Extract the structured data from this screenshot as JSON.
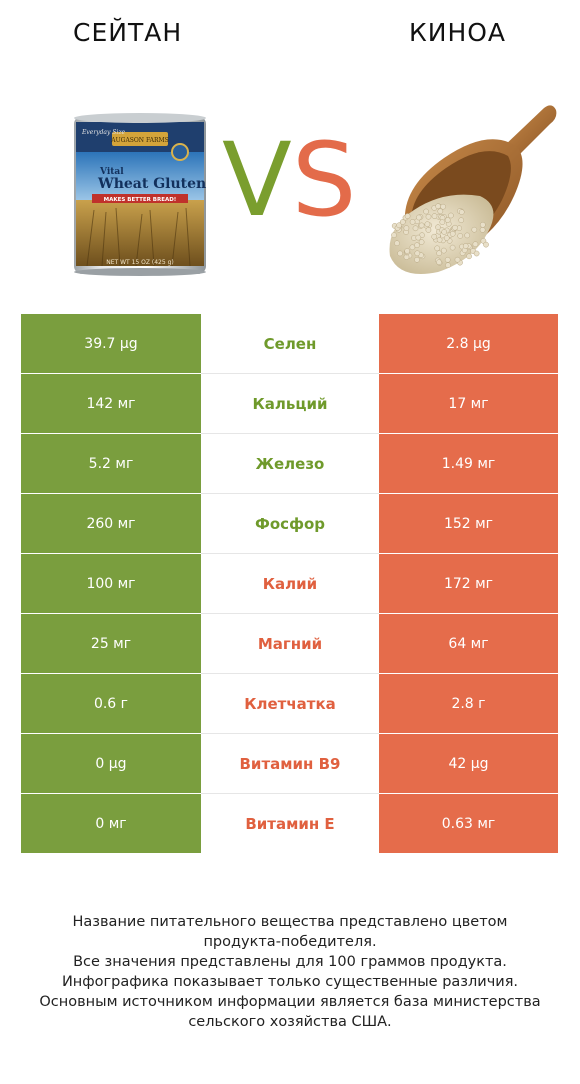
{
  "header": {
    "left_title": "СЕЙТАН",
    "right_title": "КИНОА",
    "vs_v": "V",
    "vs_s": "S"
  },
  "colors": {
    "left_product": "#7a9e3e",
    "right_product": "#e56c4b"
  },
  "images": {
    "left": {
      "icon": "wheat-gluten-can",
      "label_brand": "AUGASON FARMS",
      "label_line1": "Vital",
      "label_line2": "Wheat Gluten",
      "label_line3": "MAKES BETTER BREAD!",
      "label_corner": "Everyday Size",
      "label_bottom": "NET WT 15 OZ (425 g)"
    },
    "right": {
      "icon": "quinoa-scoop"
    }
  },
  "chart_data": {
    "type": "table",
    "columns": [
      "СЕЙТАН",
      "",
      "КИНОА"
    ],
    "rows": [
      {
        "nutrient": "Селен",
        "left": "39.7 µg",
        "right": "2.8 µg",
        "winner": "left"
      },
      {
        "nutrient": "Кальций",
        "left": "142 мг",
        "right": "17 мг",
        "winner": "left"
      },
      {
        "nutrient": "Железо",
        "left": "5.2 мг",
        "right": "1.49 мг",
        "winner": "left"
      },
      {
        "nutrient": "Фосфор",
        "left": "260 мг",
        "right": "152 мг",
        "winner": "left"
      },
      {
        "nutrient": "Калий",
        "left": "100 мг",
        "right": "172 мг",
        "winner": "right"
      },
      {
        "nutrient": "Магний",
        "left": "25 мг",
        "right": "64 мг",
        "winner": "right"
      },
      {
        "nutrient": "Клетчатка",
        "left": "0.6 г",
        "right": "2.8 г",
        "winner": "right"
      },
      {
        "nutrient": "Витамин B9",
        "left": "0 µg",
        "right": "42 µg",
        "winner": "right"
      },
      {
        "nutrient": "Витамин E",
        "left": "0 мг",
        "right": "0.63 мг",
        "winner": "right"
      }
    ]
  },
  "footer": {
    "lines": [
      "Название питательного вещества представлено цветом",
      "продукта-победителя.",
      "Все значения представлены для 100 граммов продукта.",
      "Инфографика показывает только существенные различия.",
      "Основным источником информации является база министерства",
      "сельского хозяйства США."
    ]
  }
}
